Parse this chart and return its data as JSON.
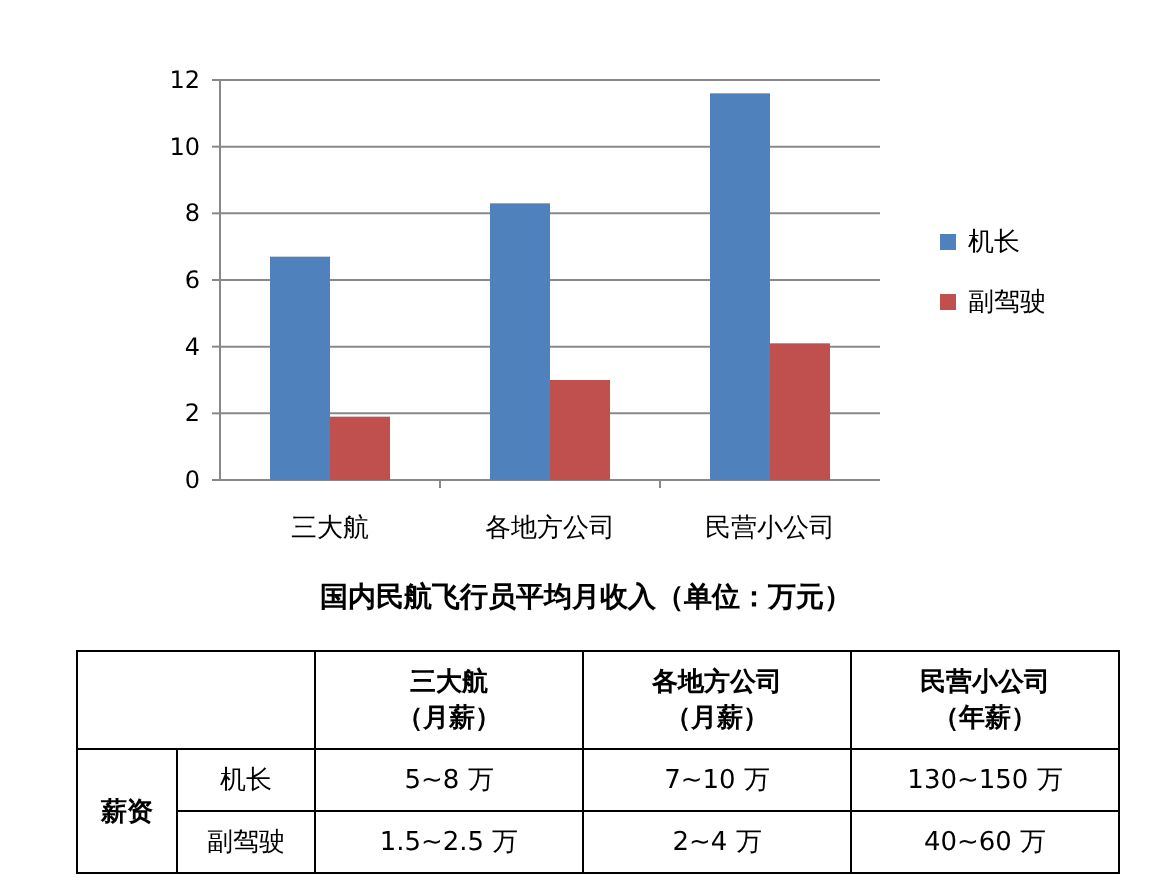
{
  "chart_data": {
    "type": "bar",
    "title": "国内民航飞行员平均月收入（单位：万元）",
    "categories": [
      "三大航",
      "各地方公司",
      "民营小公司"
    ],
    "series": [
      {
        "name": "机长",
        "color": "#4f81bd",
        "values": [
          6.7,
          8.3,
          11.6
        ]
      },
      {
        "name": "副驾驶",
        "color": "#c0504d",
        "values": [
          1.9,
          3.0,
          4.1
        ]
      }
    ],
    "ylim": [
      0,
      12
    ],
    "yticks": [
      0,
      2,
      4,
      6,
      8,
      10,
      12
    ],
    "grid": "y",
    "legend": "right",
    "annotations": [
      "三大航",
      "（月薪）",
      "各地方公司",
      "（月薪）",
      "民营小公司",
      "（年薪）",
      "薪资",
      "机长",
      "5~8 万",
      "7~10 万",
      "130~150 万",
      "副驾驶",
      "1.5~2.5 万",
      "2~4 万",
      "40~60 万"
    ]
  }
}
